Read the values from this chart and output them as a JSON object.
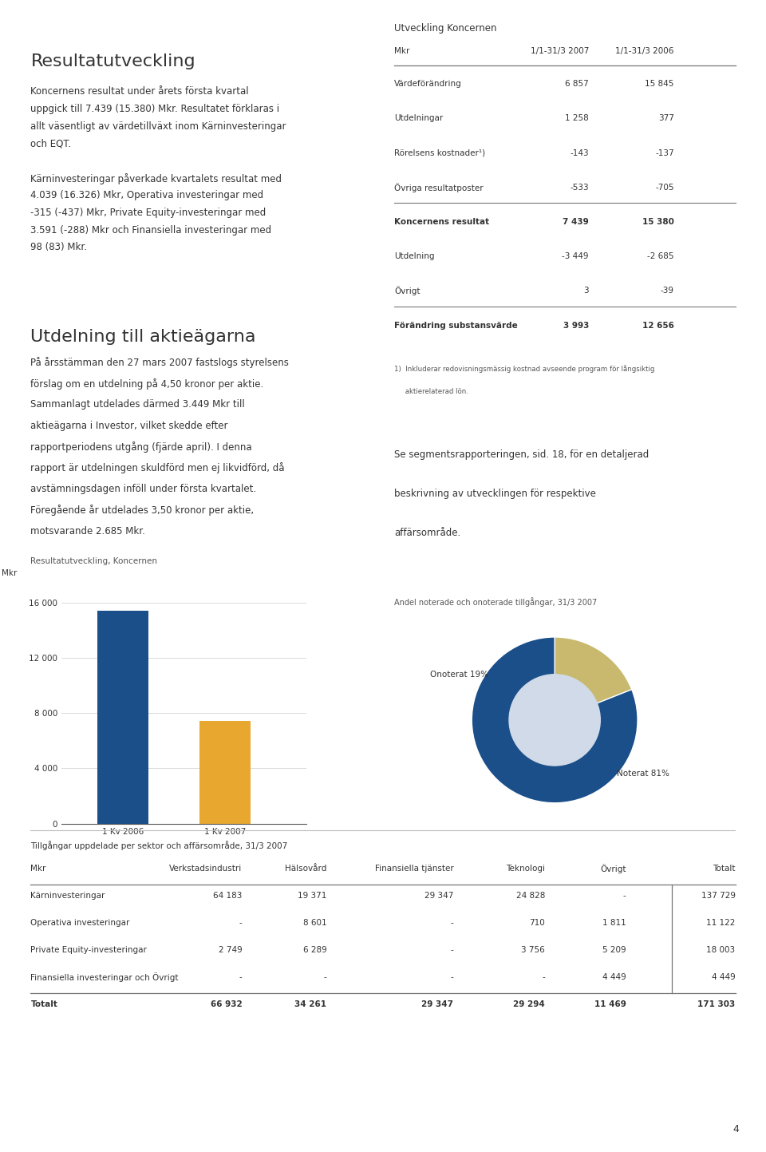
{
  "bg_color": "#ffffff",
  "page_number": "4",
  "section1_title": "Resultatutveckling",
  "section1_body_lines": [
    "Koncernens resultat under årets första kvartal",
    "uppgick till 7.439 (15.380) Mkr. Resultatet förklaras i",
    "allt väsentligt av värdetillväxt inom Kärninvesteringar",
    "och EQT.",
    "",
    "Kärninvesteringar påverkade kvartalets resultat med",
    "4.039 (16.326) Mkr, Operativa investeringar med",
    "-315 (-437) Mkr, Private Equity-investeringar med",
    "3.591 (-288) Mkr och Finansiella investeringar med",
    "98 (83) Mkr."
  ],
  "section2_title": "Utdelning till aktieägarna",
  "section2_body_lines": [
    "På årsstämman den 27 mars 2007 fastslogs styrelsens",
    "förslag om en utdelning på 4,50 kronor per aktie.",
    "Sammanlagt utdelades därmed 3.449 Mkr till",
    "aktieägarna i Investor, vilket skedde efter",
    "rapportperiodens utgång (fjärde april). I denna",
    "rapport är utdelningen skuldförd men ej likvidförd, då",
    "avstämningsdagen inföll under första kvartalet.",
    "Föregående år utdelades 3,50 kronor per aktie,",
    "motsvarande 2.685 Mkr."
  ],
  "bar_chart_title": "Resultatutveckling, Koncernen",
  "bar_ylabel": "Mkr",
  "bar_categories": [
    "1 Kv 2006",
    "1 Kv 2007"
  ],
  "bar_values": [
    15380,
    7439
  ],
  "bar_colors": [
    "#1a4f8a",
    "#e8a830"
  ],
  "bar_yticks": [
    0,
    4000,
    8000,
    12000,
    16000
  ],
  "bar_ytick_labels": [
    "0",
    "4 000",
    "8 000",
    "12 000",
    "16 000"
  ],
  "bar_ylim": [
    0,
    17500
  ],
  "table_title": "Utveckling Koncernen",
  "table_header": [
    "Mkr",
    "1/1-31/3 2007",
    "1/1-31/3 2006"
  ],
  "table_rows": [
    [
      "Värdeförändring",
      "6 857",
      "15 845"
    ],
    [
      "Utdelningar",
      "1 258",
      "377"
    ],
    [
      "Rörelsens kostnader¹)",
      "-143",
      "-137"
    ],
    [
      "Övriga resultatposter",
      "-533",
      "-705"
    ],
    [
      "Koncernens resultat",
      "7 439",
      "15 380"
    ],
    [
      "Utdelning",
      "-3 449",
      "-2 685"
    ],
    [
      "Övrigt",
      "3",
      "-39"
    ],
    [
      "Förändring substansvärde",
      "3 993",
      "12 656"
    ]
  ],
  "table_bold_rows": [
    4,
    7
  ],
  "table_separator_after": [
    3,
    6
  ],
  "table_footnote_line1": "1)  Inkluderar redovisningsmässig kostnad avseende program för långsiktig",
  "table_footnote_line2": "     aktierelaterad lön.",
  "right_text_lines": [
    "Se segmentsrapporteringen, sid. 18, för en detaljerad",
    "beskrivning av utvecklingen för respektive",
    "affärsområde."
  ],
  "pie_title": "Andel noterade och onoterade tillgångar, 31/3 2007",
  "pie_values": [
    19,
    81
  ],
  "pie_colors": [
    "#c8b96e",
    "#1a4f8a"
  ],
  "pie_inner_colors": [
    "#c8b96e",
    "#4a7bb5"
  ],
  "pie_label_onoterat": "Onoterat 19%",
  "pie_label_noterat": "Noterat 81%",
  "bottom_table_title": "Tillgångar uppdelade per sektor och affärsområde, 31/3 2007",
  "bottom_table_header": [
    "Mkr",
    "Verkstadsindustri",
    "Hälsovård",
    "Finansiella tjänster",
    "Teknologi",
    "Övrigt",
    "Totalt"
  ],
  "bottom_table_rows": [
    [
      "Kärninvesteringar",
      "64 183",
      "19 371",
      "29 347",
      "24 828",
      "-",
      "137 729"
    ],
    [
      "Operativa investeringar",
      "-",
      "8 601",
      "-",
      "710",
      "1 811",
      "11 122"
    ],
    [
      "Private Equity-investeringar",
      "2 749",
      "6 289",
      "-",
      "3 756",
      "5 209",
      "18 003"
    ],
    [
      "Finansiella investeringar och Övrigt",
      "-",
      "-",
      "-",
      "-",
      "4 449",
      "4 449"
    ]
  ],
  "bottom_table_total_row": [
    "Totalt",
    "66 932",
    "34 261",
    "29 347",
    "29 294",
    "11 469",
    "171 303"
  ]
}
